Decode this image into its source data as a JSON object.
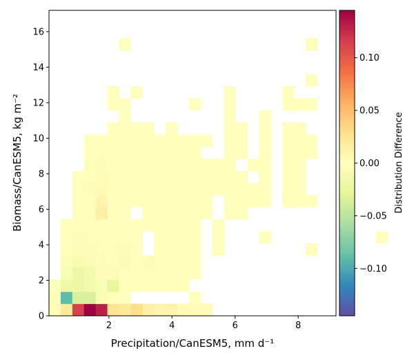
{
  "chart_data": {
    "type": "heatmap",
    "title": "",
    "xlabel": "Precipitation/CanESM5,  mm d⁻¹",
    "ylabel": "Biomass/CanESM5,  kg m⁻²",
    "xlim": [
      0.1,
      9.2
    ],
    "ylim": [
      0,
      17.2
    ],
    "x_ticks": [
      2,
      4,
      6,
      8
    ],
    "y_ticks": [
      0,
      2,
      4,
      6,
      8,
      10,
      12,
      14,
      16
    ],
    "x_tick_labels": [
      "2",
      "4",
      "6",
      "8"
    ],
    "y_tick_labels": [
      "0",
      "2",
      "4",
      "6",
      "8",
      "10",
      "12",
      "14",
      "16"
    ],
    "x_bin_start": 0.1,
    "x_bin_width": 0.37,
    "y_bin_start": 0,
    "y_bin_width": 0.68,
    "colormap": "Spectral_r",
    "colorbar": {
      "label": "Distribution Difference",
      "vmin": -0.145,
      "vmax": 0.145,
      "ticks": [
        -0.1,
        -0.05,
        0.0,
        0.05,
        0.1
      ],
      "tick_labels": [
        "−0.10",
        "−0.05",
        "0.00",
        "0.05",
        "0.10"
      ]
    },
    "cells": [
      [
        0,
        0,
        0.004
      ],
      [
        1,
        0,
        0.02
      ],
      [
        2,
        0,
        0.115
      ],
      [
        3,
        0,
        0.145
      ],
      [
        4,
        0,
        0.13
      ],
      [
        5,
        0,
        0.025
      ],
      [
        6,
        0,
        0.02
      ],
      [
        7,
        0,
        0.03
      ],
      [
        8,
        0,
        0.015
      ],
      [
        9,
        0,
        0.01
      ],
      [
        10,
        0,
        0.012
      ],
      [
        11,
        0,
        0.005
      ],
      [
        12,
        0,
        0.005
      ],
      [
        13,
        0,
        0.004
      ],
      [
        0,
        1,
        -0.005
      ],
      [
        1,
        1,
        -0.09
      ],
      [
        2,
        1,
        -0.035
      ],
      [
        3,
        1,
        -0.035
      ],
      [
        4,
        1,
        -0.01
      ],
      [
        5,
        1,
        0.001
      ],
      [
        6,
        1,
        0.002
      ],
      [
        12,
        1,
        0.001
      ],
      [
        0,
        2,
        -0.003
      ],
      [
        1,
        2,
        -0.018
      ],
      [
        2,
        2,
        -0.02
      ],
      [
        3,
        2,
        -0.015
      ],
      [
        4,
        2,
        -0.008
      ],
      [
        5,
        2,
        -0.025
      ],
      [
        6,
        2,
        -0.002
      ],
      [
        7,
        2,
        0.001
      ],
      [
        8,
        2,
        0.001
      ],
      [
        9,
        2,
        0.001
      ],
      [
        10,
        2,
        0.001
      ],
      [
        11,
        2,
        0.001
      ],
      [
        1,
        3,
        -0.01
      ],
      [
        2,
        3,
        -0.02
      ],
      [
        3,
        3,
        -0.014
      ],
      [
        4,
        3,
        0.004
      ],
      [
        5,
        3,
        -0.006
      ],
      [
        6,
        3,
        -0.003
      ],
      [
        7,
        3,
        0.002
      ],
      [
        8,
        3,
        0.002
      ],
      [
        9,
        3,
        0.001
      ],
      [
        10,
        3,
        0.001
      ],
      [
        11,
        3,
        0.001
      ],
      [
        12,
        3,
        0.001
      ],
      [
        1,
        4,
        -0.006
      ],
      [
        2,
        4,
        -0.012
      ],
      [
        3,
        4,
        -0.008
      ],
      [
        4,
        4,
        0.003
      ],
      [
        5,
        4,
        0.001
      ],
      [
        6,
        4,
        -0.008
      ],
      [
        7,
        4,
        0.001
      ],
      [
        8,
        4,
        0.003
      ],
      [
        9,
        4,
        0.002
      ],
      [
        10,
        4,
        0.002
      ],
      [
        11,
        4,
        0.001
      ],
      [
        12,
        4,
        0.001
      ],
      [
        1,
        5,
        -0.004
      ],
      [
        2,
        5,
        -0.007
      ],
      [
        3,
        5,
        -0.006
      ],
      [
        4,
        5,
        -0.004
      ],
      [
        5,
        5,
        -0.002
      ],
      [
        6,
        5,
        -0.005
      ],
      [
        7,
        5,
        -0.001
      ],
      [
        9,
        5,
        0.002
      ],
      [
        10,
        5,
        0.002
      ],
      [
        11,
        5,
        0.001
      ],
      [
        12,
        5,
        0.001
      ],
      [
        14,
        5,
        0.001
      ],
      [
        22,
        5,
        0.002
      ],
      [
        1,
        6,
        -0.003
      ],
      [
        2,
        6,
        -0.005
      ],
      [
        3,
        6,
        -0.004
      ],
      [
        4,
        6,
        0.001
      ],
      [
        5,
        6,
        -0.003
      ],
      [
        6,
        6,
        -0.002
      ],
      [
        7,
        6,
        0.001
      ],
      [
        9,
        6,
        0.001
      ],
      [
        10,
        6,
        0.001
      ],
      [
        11,
        6,
        0.001
      ],
      [
        12,
        6,
        0.001
      ],
      [
        14,
        6,
        0.001
      ],
      [
        18,
        6,
        0.001
      ],
      [
        18,
        6,
        0.001
      ],
      [
        28,
        6,
        0.002
      ],
      [
        28,
        6,
        0.002
      ],
      [
        1,
        7,
        -0.002
      ],
      [
        2,
        7,
        -0.004
      ],
      [
        3,
        7,
        -0.004
      ],
      [
        4,
        7,
        0.001
      ],
      [
        5,
        7,
        -0.002
      ],
      [
        6,
        7,
        -0.001
      ],
      [
        7,
        7,
        0.001
      ],
      [
        8,
        7,
        0.001
      ],
      [
        9,
        7,
        0.001
      ],
      [
        10,
        7,
        0.001
      ],
      [
        11,
        7,
        0.001
      ],
      [
        12,
        7,
        0.001
      ],
      [
        14,
        7,
        0.001
      ],
      [
        2,
        8,
        -0.003
      ],
      [
        3,
        8,
        -0.003
      ],
      [
        4,
        8,
        0.015
      ],
      [
        5,
        8,
        0.001
      ],
      [
        6,
        8,
        -0.002
      ],
      [
        8,
        8,
        0.001
      ],
      [
        9,
        8,
        0.001
      ],
      [
        10,
        8,
        0.001
      ],
      [
        11,
        8,
        0.001
      ],
      [
        12,
        8,
        0.002
      ],
      [
        13,
        8,
        0.001
      ],
      [
        15,
        8,
        0.002
      ],
      [
        16,
        8,
        0.002
      ],
      [
        2,
        9,
        -0.002
      ],
      [
        3,
        9,
        0.001
      ],
      [
        4,
        9,
        0.01
      ],
      [
        5,
        9,
        0.002
      ],
      [
        6,
        9,
        0.001
      ],
      [
        7,
        9,
        0.001
      ],
      [
        8,
        9,
        0.002
      ],
      [
        9,
        9,
        0.001
      ],
      [
        10,
        9,
        0.001
      ],
      [
        11,
        9,
        0.001
      ],
      [
        12,
        9,
        0.001
      ],
      [
        13,
        9,
        0.001
      ],
      [
        15,
        9,
        0.001
      ],
      [
        16,
        9,
        0.002
      ],
      [
        17,
        9,
        0.001
      ],
      [
        18,
        9,
        0.001
      ],
      [
        20,
        9,
        0.002
      ],
      [
        21,
        9,
        0.001
      ],
      [
        22,
        9,
        0.001
      ],
      [
        2,
        10,
        -0.002
      ],
      [
        3,
        10,
        0.004
      ],
      [
        4,
        10,
        0.006
      ],
      [
        5,
        10,
        0.001
      ],
      [
        6,
        10,
        0.001
      ],
      [
        7,
        10,
        0.001
      ],
      [
        8,
        10,
        0.001
      ],
      [
        9,
        10,
        0.001
      ],
      [
        10,
        10,
        0.001
      ],
      [
        11,
        10,
        0.001
      ],
      [
        12,
        10,
        0.001
      ],
      [
        13,
        10,
        0.001
      ],
      [
        14,
        10,
        0.001
      ],
      [
        15,
        10,
        0.001
      ],
      [
        16,
        10,
        0.001
      ],
      [
        17,
        10,
        0.001
      ],
      [
        18,
        10,
        0.001
      ],
      [
        20,
        10,
        0.001
      ],
      [
        21,
        10,
        0.001
      ],
      [
        2,
        11,
        -0.002
      ],
      [
        3,
        11,
        0.002
      ],
      [
        4,
        11,
        0.005
      ],
      [
        5,
        11,
        0.001
      ],
      [
        6,
        11,
        -0.001
      ],
      [
        7,
        11,
        0.001
      ],
      [
        8,
        11,
        0.001
      ],
      [
        9,
        11,
        0.001
      ],
      [
        10,
        11,
        0.001
      ],
      [
        11,
        11,
        0.001
      ],
      [
        12,
        11,
        0.001
      ],
      [
        13,
        11,
        0.001
      ],
      [
        14,
        11,
        0.001
      ],
      [
        15,
        11,
        0.001
      ],
      [
        16,
        11,
        0.002
      ],
      [
        18,
        11,
        0.001
      ],
      [
        20,
        11,
        0.001
      ],
      [
        21,
        11,
        0.001
      ],
      [
        3,
        12,
        0.002
      ],
      [
        4,
        12,
        0.003
      ],
      [
        5,
        12,
        0.001
      ],
      [
        6,
        12,
        0.001
      ],
      [
        7,
        12,
        0.001
      ],
      [
        8,
        12,
        0.001
      ],
      [
        9,
        12,
        0.001
      ],
      [
        10,
        12,
        0.001
      ],
      [
        11,
        12,
        0.001
      ],
      [
        12,
        12,
        0.001
      ],
      [
        13,
        12,
        0.001
      ],
      [
        14,
        12,
        0.001
      ],
      [
        15,
        12,
        0.001
      ],
      [
        17,
        12,
        0.001
      ],
      [
        18,
        12,
        0.001
      ],
      [
        20,
        12,
        0.001
      ],
      [
        21,
        12,
        0.001
      ],
      [
        3,
        13,
        0.001
      ],
      [
        4,
        13,
        0.002
      ],
      [
        5,
        13,
        0.001
      ],
      [
        6,
        13,
        0.001
      ],
      [
        7,
        13,
        0.001
      ],
      [
        8,
        13,
        0.001
      ],
      [
        9,
        13,
        0.001
      ],
      [
        10,
        13,
        0.001
      ],
      [
        11,
        13,
        0.001
      ],
      [
        12,
        13,
        0.001
      ],
      [
        15,
        13,
        0.001
      ],
      [
        16,
        13,
        0.001
      ],
      [
        18,
        13,
        0.001
      ],
      [
        20,
        13,
        0.001
      ],
      [
        21,
        13,
        0.001
      ],
      [
        22,
        13,
        0.001
      ],
      [
        3,
        14,
        0.001
      ],
      [
        4,
        14,
        0.001
      ],
      [
        5,
        14,
        0.001
      ],
      [
        6,
        14,
        0.001
      ],
      [
        7,
        14,
        0.001
      ],
      [
        8,
        14,
        0.001
      ],
      [
        9,
        14,
        0.001
      ],
      [
        10,
        14,
        0.002
      ],
      [
        11,
        14,
        0.001
      ],
      [
        12,
        14,
        0.001
      ],
      [
        13,
        14,
        0.001
      ],
      [
        15,
        14,
        0.001
      ],
      [
        16,
        14,
        0.001
      ],
      [
        18,
        14,
        0.001
      ],
      [
        20,
        14,
        0.001
      ],
      [
        21,
        14,
        0.001
      ],
      [
        22,
        14,
        0.001
      ],
      [
        5,
        15,
        0.001
      ],
      [
        6,
        15,
        0.001
      ],
      [
        7,
        15,
        0.001
      ],
      [
        8,
        15,
        0.001
      ],
      [
        10,
        15,
        0.001
      ],
      [
        15,
        15,
        0.001
      ],
      [
        16,
        15,
        0.001
      ],
      [
        18,
        15,
        0.001
      ],
      [
        20,
        15,
        0.001
      ],
      [
        21,
        15,
        0.001
      ],
      [
        6,
        16,
        0.001
      ],
      [
        15,
        16,
        0.001
      ],
      [
        18,
        16,
        0.001
      ],
      [
        5,
        17,
        0.001
      ],
      [
        6,
        17,
        0.001
      ],
      [
        12,
        17,
        0.001
      ],
      [
        15,
        17,
        0.001
      ],
      [
        20,
        17,
        0.001
      ],
      [
        21,
        17,
        0.001
      ],
      [
        22,
        17,
        0.001
      ],
      [
        5,
        18,
        0.001
      ],
      [
        7,
        18,
        0.001
      ],
      [
        15,
        18,
        0.001
      ],
      [
        20,
        18,
        0.001
      ],
      [
        22,
        19,
        0.002
      ],
      [
        6,
        22,
        0.002
      ],
      [
        22,
        22,
        0.002
      ]
    ]
  }
}
